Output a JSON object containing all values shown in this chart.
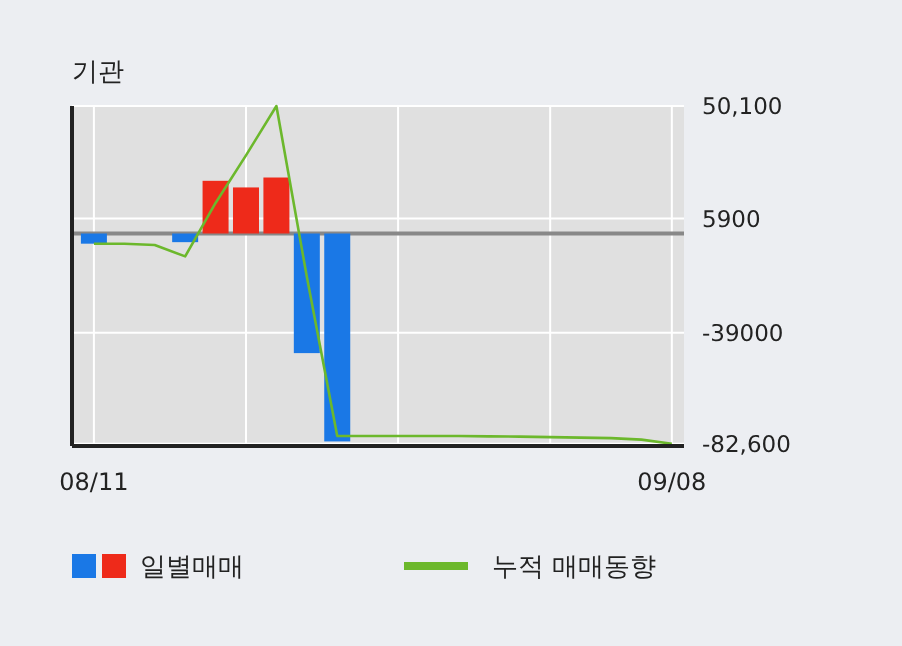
{
  "chart_data": {
    "type": "bar",
    "title": "기관",
    "categories": [
      "08/11",
      null,
      null,
      null,
      null,
      null,
      null,
      null,
      null,
      null,
      null,
      null,
      null,
      null,
      null,
      null,
      null,
      null,
      null,
      "09/08"
    ],
    "series": [
      {
        "name": "일별매매",
        "values": [
          -4000,
          null,
          null,
          -3400,
          20700,
          18100,
          22000,
          -47000,
          -81700,
          null,
          null,
          null,
          null,
          null,
          null,
          null,
          null,
          null,
          null,
          null
        ],
        "colors": [
          "#1a78e6",
          null,
          null,
          "#1a78e6",
          "#ee2a1a",
          "#ee2a1a",
          "#ee2a1a",
          "#1a78e6",
          "#1a78e6",
          null,
          null,
          null,
          null,
          null,
          null,
          null,
          null,
          null,
          null,
          null
        ]
      },
      {
        "name": "누적 매매동향",
        "type": "line",
        "color": "#6cb82c",
        "values": [
          -4000,
          -4000,
          -4500,
          -9000,
          12000,
          30700,
          50100,
          -17000,
          -79600,
          -79600,
          -79600,
          -79600,
          -79600,
          -79700,
          -79800,
          -80000,
          -80200,
          -80400,
          -81000,
          -82600
        ]
      }
    ],
    "ylim": [
      -83500,
      50100
    ],
    "yticks": [
      {
        "value": 50100,
        "label": "50,100"
      },
      5900,
      -39000,
      {
        "value": -82600,
        "label": "-82,600"
      }
    ],
    "ref_lines": [
      {
        "axis": "y",
        "value": 0,
        "color": "#888888"
      }
    ],
    "grid": true,
    "legend": "bottom left"
  }
}
